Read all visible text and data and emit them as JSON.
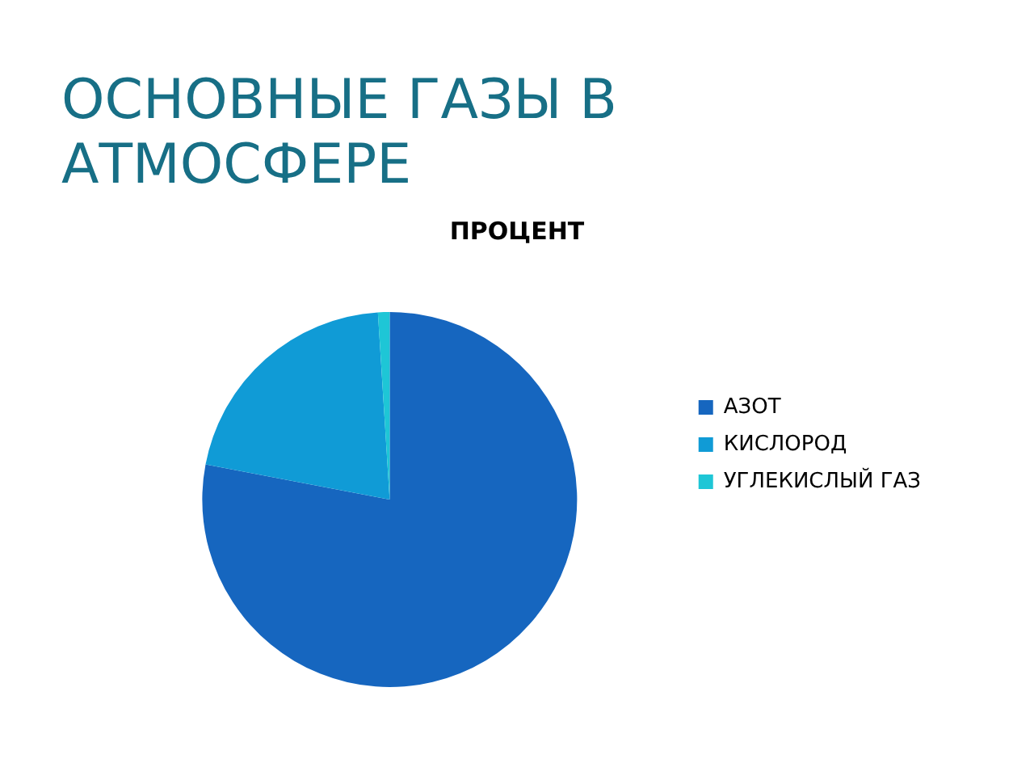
{
  "chart_data": {
    "type": "pie",
    "title": "ОСНОВНЫЕ ГАЗЫ В АТМОСФЕРЕ",
    "subtitle": "ПРОЦЕНТ",
    "categories": [
      "АЗОТ",
      "КИСЛОРОД",
      "УГЛЕКИСЛЫЙ ГАЗ"
    ],
    "values": [
      78,
      21,
      1
    ],
    "colors": [
      "#1666bf",
      "#109bd6",
      "#1ec6d6"
    ],
    "legend": "right"
  }
}
